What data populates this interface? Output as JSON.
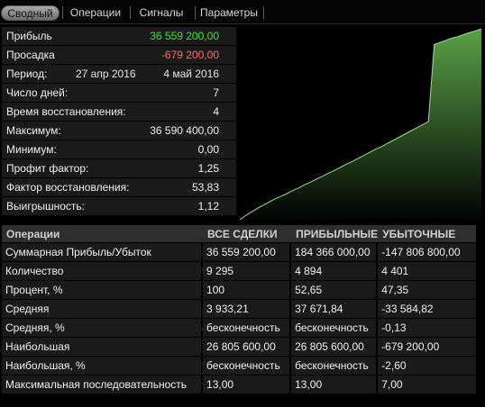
{
  "tabs": [
    {
      "label": "Сводный",
      "active": true
    },
    {
      "label": "Операции",
      "active": false
    },
    {
      "label": "Сигналы",
      "active": false
    },
    {
      "label": "Параметры",
      "active": false
    }
  ],
  "summary": {
    "profit": {
      "label": "Прибыль",
      "value": "36 559 200,00"
    },
    "drawdown": {
      "label": "Просадка",
      "value": "-679 200,00"
    },
    "period": {
      "label": "Период:",
      "start": "27 апр 2016",
      "end": "4 май 2016"
    },
    "days": {
      "label": "Число дней:",
      "value": "7"
    },
    "recovery_time": {
      "label": "Время восстановления:",
      "value": "4"
    },
    "maximum": {
      "label": "Максимум:",
      "value": "36 590 400,00"
    },
    "minimum": {
      "label": "Минимум:",
      "value": "0,00"
    },
    "profit_factor": {
      "label": "Профит фактор:",
      "value": "1,25"
    },
    "recovery_factor": {
      "label": "Фактор восстановления:",
      "value": "53,83"
    },
    "win_rate": {
      "label": "Выигрышность:",
      "value": "1,12"
    }
  },
  "colors": {
    "positive": "#3fe03f",
    "negative": "#ff6d6d",
    "chart_fill_top": "#4f8f3f",
    "chart_line": "#9be08a"
  },
  "chart_data": {
    "type": "area",
    "title": "",
    "xlabel": "",
    "ylabel": "",
    "grid": false,
    "values": [
      0,
      0.8,
      1.5,
      2.2,
      2.8,
      3.4,
      4.0,
      4.5,
      5.0,
      5.6,
      6.1,
      6.7,
      7.2,
      7.8,
      8.3,
      8.9,
      9.4,
      10.0,
      10.6,
      11.1,
      11.7,
      12.3,
      12.9,
      13.5,
      14.0,
      14.6,
      15.2,
      15.8,
      16.4,
      17.0,
      17.6,
      18.2,
      18.8,
      33.6,
      34.0,
      34.4,
      34.8,
      35.1,
      35.5,
      35.9,
      36.2,
      36.6
    ],
    "ylim": [
      0,
      36.6
    ]
  },
  "operations": {
    "headers": [
      "Операции",
      "ВСЕ СДЕЛКИ",
      "ПРИБЫЛЬНЫЕ",
      "УБЫТОЧНЫЕ"
    ],
    "rows": [
      [
        "Суммарная Прибыль/Убыток",
        "36 559 200,00",
        "184 366 000,00",
        "-147 806 800,00"
      ],
      [
        "Количество",
        "9 295",
        "4 894",
        "4 401"
      ],
      [
        "Процент, %",
        "100",
        "52,65",
        "47,35"
      ],
      [
        "Средняя",
        "3 933,21",
        "37 671,84",
        "-33 584,82"
      ],
      [
        "Средняя, %",
        "бесконечность",
        "бесконечность",
        "-0,13"
      ],
      [
        "Наибольшая",
        "26 805 600,00",
        "26 805 600,00",
        "-679 200,00"
      ],
      [
        "Наибольшая, %",
        "бесконечность",
        "бесконечность",
        "-2,60"
      ],
      [
        "Максимальная последовательность",
        "13,00",
        "13,00",
        "7,00"
      ]
    ]
  }
}
